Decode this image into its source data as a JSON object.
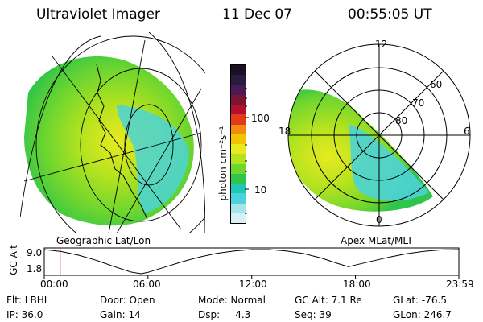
{
  "header": {
    "instrument": "Ultraviolet Imager",
    "date": "11 Dec 07",
    "time": "00:55:05 UT"
  },
  "panels": {
    "left_caption": "Geographic Lat/Lon",
    "right_caption": "Apex MLat/MLT"
  },
  "colorbar": {
    "label": "photon cm⁻²s⁻¹",
    "ticks": [
      "100",
      "10"
    ],
    "colors": [
      "#1b0f24",
      "#2a1a40",
      "#4a1a55",
      "#7a1535",
      "#b5102a",
      "#e23b1a",
      "#f08c10",
      "#f2c400",
      "#e8ea20",
      "#b6e31f",
      "#6fd62e",
      "#2fc44a",
      "#20c7b4",
      "#4bd3d7",
      "#a8e4ec",
      "#d8f1f4"
    ]
  },
  "polar": {
    "mlt_labels": [
      "12",
      "18",
      "6",
      "0"
    ],
    "lat_labels": [
      "60",
      "70",
      "80"
    ]
  },
  "altitude_plot": {
    "ylabel": "GC Alt",
    "yticks": [
      "9.0",
      "1.8"
    ],
    "xticks": [
      "00:00",
      "06:00",
      "12:00",
      "18:00",
      "23:59"
    ],
    "current_marker_time": "00:55"
  },
  "info": {
    "flt": "Flt: LBHL",
    "door": "Door: Open",
    "mode": "Mode: Normal",
    "gc_alt": "GC Alt: 7.1 Re",
    "glat": "GLat: -76.5",
    "ip": "IP: 36.0",
    "gain": "Gain: 14",
    "dsp": "Dsp:     4.3",
    "seq": "Seq: 39",
    "glon": "GLon: 246.7"
  },
  "chart_data": {
    "type": "line",
    "title": "",
    "xlabel": "",
    "ylabel": "GC Alt",
    "x_hours": [
      0,
      1,
      2,
      3,
      4,
      5,
      5.6,
      6,
      7,
      8,
      9,
      10,
      11,
      12,
      13,
      14,
      15,
      16,
      17,
      17.6,
      18,
      19,
      20,
      21,
      22,
      23,
      23.98
    ],
    "values": [
      9.0,
      8.4,
      7.3,
      5.8,
      4.0,
      2.3,
      1.8,
      2.2,
      3.8,
      5.4,
      6.8,
      7.9,
      8.6,
      9.0,
      9.0,
      8.6,
      7.8,
      6.5,
      4.8,
      3.9,
      4.4,
      5.6,
      6.8,
      7.8,
      8.5,
      8.9,
      9.0
    ],
    "xlim": [
      0,
      23.98
    ],
    "ylim": [
      1.8,
      9.0
    ],
    "marker_hour": 0.92
  }
}
